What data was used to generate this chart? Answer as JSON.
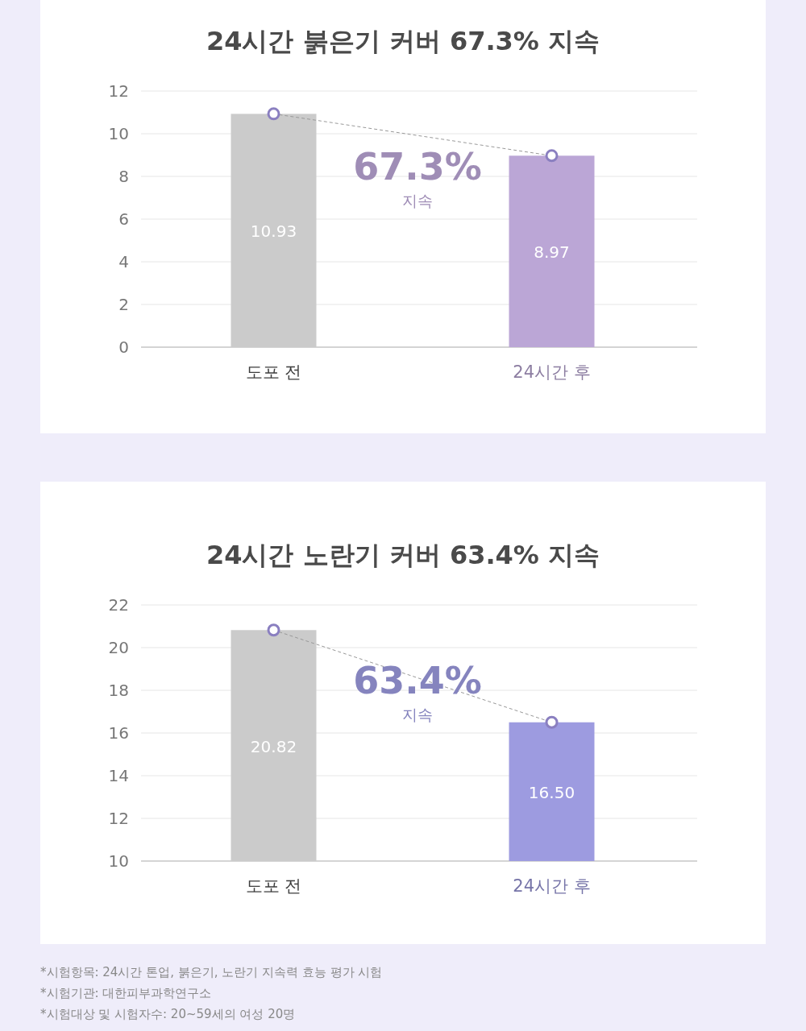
{
  "chart_data": [
    {
      "type": "bar",
      "title": "24시간 붉은기 커버 67.3% 지속",
      "categories": [
        "도포 전",
        "24시간 후"
      ],
      "ylim": [
        0,
        12
      ],
      "yticks": [
        0,
        2,
        4,
        6,
        8,
        10,
        12
      ],
      "grid": "y",
      "series": [
        {
          "colors": [
            "#cbcbcb",
            "#bba6d6"
          ],
          "values": [
            10.93,
            8.97
          ],
          "value_labels": [
            "10.93",
            "8.97"
          ]
        },
        {
          "type": "line",
          "color": "#8a7fc0",
          "values": [
            10.93,
            8.97
          ],
          "marker": "circle",
          "line_style": "dashed"
        }
      ],
      "annotations": [
        "67.3%",
        "지속"
      ]
    },
    {
      "type": "bar",
      "title": "24시간 노란기 커버 63.4% 지속",
      "categories": [
        "도포 전",
        "24시간 후"
      ],
      "ylim": [
        10,
        22
      ],
      "yticks": [
        10,
        12,
        14,
        16,
        18,
        20,
        22
      ],
      "grid": "y",
      "series": [
        {
          "colors": [
            "#cbcbcb",
            "#9d9be0"
          ],
          "values": [
            20.82,
            16.5
          ],
          "value_labels": [
            "20.82",
            "16.50"
          ]
        },
        {
          "type": "line",
          "color": "#8a7fc0",
          "values": [
            20.82,
            16.5
          ],
          "marker": "circle",
          "line_style": "dashed"
        }
      ],
      "annotations": [
        "63.4%",
        "지속",
        "*시험항목: 24시간 톤업, 붉은기, 노란기 지속력 효능 평가 시험",
        "*시험기관: 대한피부과학연구소",
        "*시험대상 및 시험자수: 20~59세의 여성 20명"
      ]
    }
  ]
}
